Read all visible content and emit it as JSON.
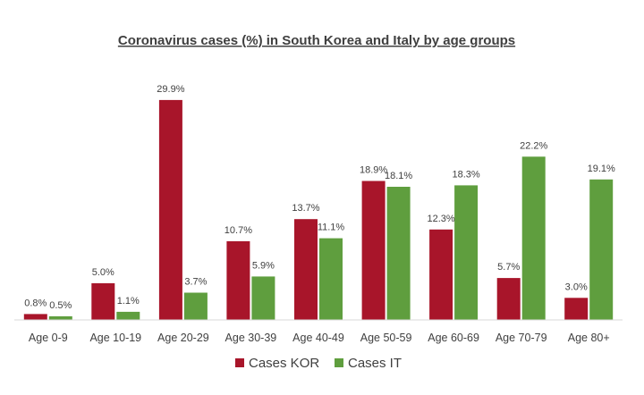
{
  "chart_data": {
    "type": "bar",
    "title": "Coronavirus cases (%) in South Korea and Italy by age groups",
    "categories": [
      "Age 0-9",
      "Age 10-19",
      "Age 20-29",
      "Age 30-39",
      "Age 40-49",
      "Age 50-59",
      "Age 60-69",
      "Age 70-79",
      "Age 80+"
    ],
    "series": [
      {
        "name": "Cases KOR",
        "color": "#a8152a",
        "values": [
          0.8,
          5.0,
          29.9,
          10.7,
          13.7,
          18.9,
          12.3,
          5.7,
          3.0
        ],
        "labels": [
          "0.8%",
          "5.0%",
          "29.9%",
          "10.7%",
          "13.7%",
          "18.9%",
          "12.3%",
          "5.7%",
          "3.0%"
        ]
      },
      {
        "name": "Cases IT",
        "color": "#5f9e3e",
        "values": [
          0.5,
          1.1,
          3.7,
          5.9,
          11.1,
          18.1,
          18.3,
          22.2,
          19.1
        ],
        "labels": [
          "0.5%",
          "1.1%",
          "3.7%",
          "5.9%",
          "11.1%",
          "18.1%",
          "18.3%",
          "22.2%",
          "19.1%"
        ]
      }
    ],
    "ylim": [
      0,
      30
    ],
    "grid": false,
    "legend_position": "bottom-center",
    "xlabel": "",
    "ylabel": ""
  }
}
